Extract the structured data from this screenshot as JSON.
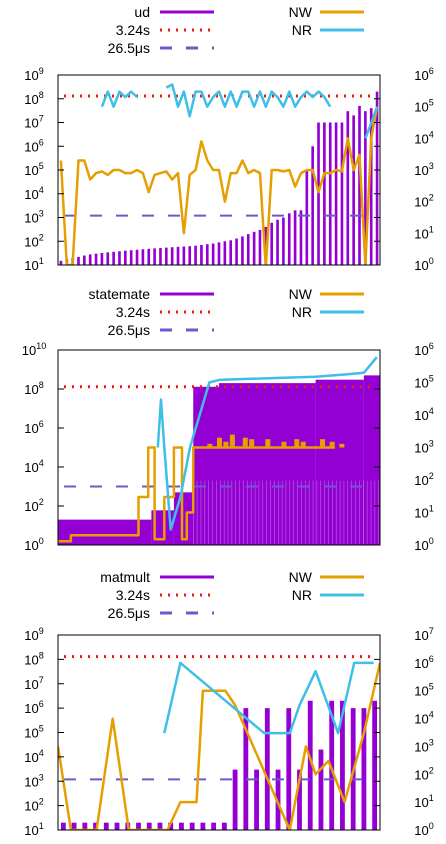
{
  "colors": {
    "ud_bars": "#9400d3",
    "threshold_red": "#e51e10",
    "threshold_blue": "#6a5acd",
    "nw": "#e69f00",
    "nr": "#3fbfe6",
    "axes": "#000000"
  },
  "chart_data": [
    {
      "type": "bar",
      "title": "",
      "left_axis": {
        "scale": "log",
        "ylim": [
          10,
          1000000000
        ],
        "tick_exponents": [
          1,
          2,
          3,
          4,
          5,
          6,
          7,
          8,
          9
        ]
      },
      "right_axis": {
        "scale": "log",
        "ylim": [
          1,
          1000000
        ],
        "tick_exponents": [
          0,
          1,
          2,
          3,
          4,
          5,
          6
        ]
      },
      "legend": {
        "left": [
          {
            "label": "ud",
            "style": "solid",
            "color": "#9400d3"
          },
          {
            "label": "3.24s",
            "style": "dotted",
            "color": "#e51e10"
          },
          {
            "label": "26.5μs",
            "style": "dashed",
            "color": "#6a5acd"
          }
        ],
        "right": [
          {
            "label": "NW",
            "style": "solid",
            "color": "#e69f00"
          },
          {
            "label": "NR",
            "style": "solid",
            "color": "#3fbfe6"
          }
        ]
      },
      "thresholds": {
        "red_y": 130000000,
        "blue_y": 1200
      },
      "series": [
        {
          "name": "ud",
          "axis": "left",
          "values": [
            15,
            18,
            20,
            22,
            25,
            28,
            30,
            32,
            34,
            36,
            38,
            40,
            42,
            44,
            46,
            48,
            50,
            52,
            54,
            56,
            58,
            60,
            62,
            65,
            70,
            75,
            80,
            90,
            100,
            110,
            130,
            160,
            200,
            250,
            300,
            400,
            600,
            800,
            1000,
            1500,
            2000,
            2000,
            100000,
            1000000,
            10000000,
            10000000,
            10000000,
            10000000,
            10000000,
            30000000,
            20000000,
            50000000,
            30000000,
            40000000,
            200000000
          ]
        },
        {
          "name": "NW",
          "axis": "right",
          "values": [
            2000,
            1,
            1,
            2000,
            2000,
            500,
            800,
            900,
            700,
            1000,
            1000,
            800,
            800,
            1000,
            800,
            200,
            700,
            800,
            900,
            500,
            800,
            10,
            700,
            1000,
            8000,
            2000,
            1000,
            1000,
            100,
            800,
            800,
            2000,
            800,
            1000,
            800,
            0.8,
            1000,
            1000,
            900,
            1000,
            300,
            800,
            1000,
            1000,
            200,
            800,
            800,
            1000,
            900,
            10000,
            1000,
            3000,
            1,
            10000,
            100000
          ]
        },
        {
          "name": "NR",
          "axis": "right",
          "values": [
            null,
            null,
            null,
            null,
            null,
            null,
            null,
            100000,
            300000,
            100000,
            300000,
            200000,
            300000,
            200000,
            null,
            null,
            null,
            null,
            400000,
            500000,
            100000,
            300000,
            50000,
            300000,
            300000,
            100000,
            200000,
            300000,
            100000,
            300000,
            100000,
            300000,
            300000,
            100000,
            300000,
            100000,
            300000,
            200000,
            100000,
            300000,
            100000,
            200000,
            300000,
            200000,
            300000,
            200000,
            100000,
            null,
            null,
            null,
            null,
            null,
            10000,
            30000,
            100000
          ]
        }
      ]
    },
    {
      "type": "bar",
      "title": "",
      "left_axis": {
        "scale": "log",
        "ylim": [
          1,
          10000000000
        ],
        "tick_exponents": [
          0,
          2,
          4,
          6,
          8,
          10
        ]
      },
      "right_axis": {
        "scale": "log",
        "ylim": [
          1,
          1000000
        ],
        "tick_exponents": [
          0,
          1,
          2,
          3,
          4,
          5,
          6
        ]
      },
      "legend": {
        "left": [
          {
            "label": "statemate",
            "style": "solid",
            "color": "#9400d3"
          },
          {
            "label": "3.24s",
            "style": "dotted",
            "color": "#e51e10"
          },
          {
            "label": "26.5μs",
            "style": "dashed",
            "color": "#6a5acd"
          }
        ],
        "right": [
          {
            "label": "NW",
            "style": "solid",
            "color": "#e69f00"
          },
          {
            "label": "NR",
            "style": "solid",
            "color": "#3fbfe6"
          }
        ]
      },
      "thresholds": {
        "red_y": 130000000,
        "blue_y": 1000
      },
      "series": [
        {
          "name": "statemate",
          "axis": "left",
          "segments": [
            {
              "x_from": 0,
              "x_to": 0.29,
              "y": 20
            },
            {
              "x_from": 0.29,
              "x_to": 0.36,
              "y": 60
            },
            {
              "x_from": 0.36,
              "x_to": 0.42,
              "y": 500
            },
            {
              "x_from": 0.42,
              "x_to": 0.5,
              "y": 130000000
            },
            {
              "x_from": 0.5,
              "x_to": 0.8,
              "y": 200000000
            },
            {
              "x_from": 0.8,
              "x_to": 0.95,
              "y": 300000000
            },
            {
              "x_from": 0.95,
              "x_to": 1.0,
              "y": 500000000
            }
          ]
        },
        {
          "name": "NW",
          "axis": "right",
          "points": [
            [
              0.0,
              1.3
            ],
            [
              0.04,
              1.3
            ],
            [
              0.04,
              2
            ],
            [
              0.25,
              2
            ],
            [
              0.25,
              30
            ],
            [
              0.28,
              30
            ],
            [
              0.28,
              1000
            ],
            [
              0.3,
              1000
            ],
            [
              0.3,
              1.5
            ],
            [
              0.33,
              1.5
            ],
            [
              0.33,
              30
            ],
            [
              0.36,
              30
            ],
            [
              0.36,
              1000
            ],
            [
              0.385,
              1000
            ],
            [
              0.385,
              1.5
            ],
            [
              0.4,
              1.5
            ],
            [
              0.4,
              10
            ],
            [
              0.42,
              10
            ],
            [
              0.42,
              1000
            ],
            [
              0.5,
              1000
            ],
            [
              0.52,
              1000
            ],
            [
              0.54,
              1000
            ],
            [
              0.56,
              1000
            ],
            [
              0.6,
              1000
            ],
            [
              0.62,
              1000
            ],
            [
              0.66,
              1000
            ],
            [
              0.7,
              1000
            ],
            [
              0.74,
              1000
            ],
            [
              0.78,
              1000
            ],
            [
              0.82,
              1000
            ],
            [
              0.86,
              1000
            ]
          ]
        },
        {
          "name": "NR",
          "axis": "right",
          "points": [
            [
              0.31,
              1000
            ],
            [
              0.32,
              30000
            ],
            [
              0.33,
              1000
            ],
            [
              0.35,
              3
            ],
            [
              0.38,
              30
            ],
            [
              0.41,
              1000
            ],
            [
              0.47,
              100000
            ],
            [
              0.5,
              120000
            ],
            [
              0.6,
              130000
            ],
            [
              0.7,
              140000
            ],
            [
              0.8,
              150000
            ],
            [
              0.9,
              180000
            ],
            [
              0.95,
              200000
            ],
            [
              0.99,
              600000
            ]
          ]
        },
        {
          "name": "NW-spikes",
          "axis": "right",
          "spikes": [
            [
              0.47,
              1300
            ],
            [
              0.5,
              2000
            ],
            [
              0.52,
              1500
            ],
            [
              0.54,
              2500
            ],
            [
              0.58,
              2000
            ],
            [
              0.6,
              1800
            ],
            [
              0.65,
              1800
            ],
            [
              0.7,
              1500
            ],
            [
              0.74,
              1800
            ],
            [
              0.76,
              1500
            ],
            [
              0.82,
              1800
            ],
            [
              0.85,
              1500
            ],
            [
              0.88,
              1300
            ]
          ]
        }
      ]
    },
    {
      "type": "bar",
      "title": "",
      "left_axis": {
        "scale": "log",
        "ylim": [
          10,
          1000000000
        ],
        "tick_exponents": [
          1,
          2,
          3,
          4,
          5,
          6,
          7,
          8,
          9
        ]
      },
      "right_axis": {
        "scale": "log",
        "ylim": [
          1,
          10000000
        ],
        "tick_exponents": [
          0,
          1,
          2,
          3,
          4,
          5,
          6,
          7
        ]
      },
      "legend": {
        "left": [
          {
            "label": "matmult",
            "style": "solid",
            "color": "#9400d3"
          },
          {
            "label": "3.24s",
            "style": "dotted",
            "color": "#e51e10"
          },
          {
            "label": "26.5μs",
            "style": "dashed",
            "color": "#6a5acd"
          }
        ],
        "right": [
          {
            "label": "NW",
            "style": "solid",
            "color": "#e69f00"
          },
          {
            "label": "NR",
            "style": "solid",
            "color": "#3fbfe6"
          }
        ]
      },
      "thresholds": {
        "red_y": 130000000,
        "blue_y": 1200
      },
      "series": [
        {
          "name": "matmult",
          "axis": "left",
          "values": [
            20,
            20,
            20,
            20,
            20,
            20,
            20,
            20,
            20,
            20,
            20,
            20,
            20,
            20,
            20,
            20,
            3000,
            1000000,
            3000,
            1000000,
            3000,
            1000000,
            3000,
            2000000,
            20000,
            2000000,
            2000000,
            1000000,
            1000000,
            2000000
          ]
        },
        {
          "name": "NW",
          "axis": "right",
          "points": [
            [
              0.0,
              1000
            ],
            [
              0.04,
              1
            ],
            [
              0.12,
              1
            ],
            [
              0.17,
              10000
            ],
            [
              0.22,
              1
            ],
            [
              0.28,
              1
            ],
            [
              0.34,
              1
            ],
            [
              0.38,
              10
            ],
            [
              0.43,
              10
            ],
            [
              0.45,
              100000
            ],
            [
              0.52,
              100000
            ],
            [
              0.55,
              30000
            ],
            [
              0.58,
              5000
            ],
            [
              0.72,
              1
            ],
            [
              0.77,
              1000
            ],
            [
              0.8,
              100
            ],
            [
              0.84,
              300
            ],
            [
              0.89,
              10
            ],
            [
              0.95,
              3000
            ],
            [
              0.98,
              100000
            ],
            [
              1.0,
              1000000
            ]
          ]
        },
        {
          "name": "NR",
          "axis": "right",
          "points": [
            [
              0.33,
              3000
            ],
            [
              0.38,
              1000000
            ],
            [
              0.64,
              3000
            ],
            [
              0.72,
              3000
            ],
            [
              0.75,
              30000
            ],
            [
              0.8,
              500000
            ],
            [
              0.87,
              3000
            ],
            [
              0.92,
              1000000
            ],
            [
              0.98,
              1000000
            ]
          ]
        }
      ]
    }
  ]
}
